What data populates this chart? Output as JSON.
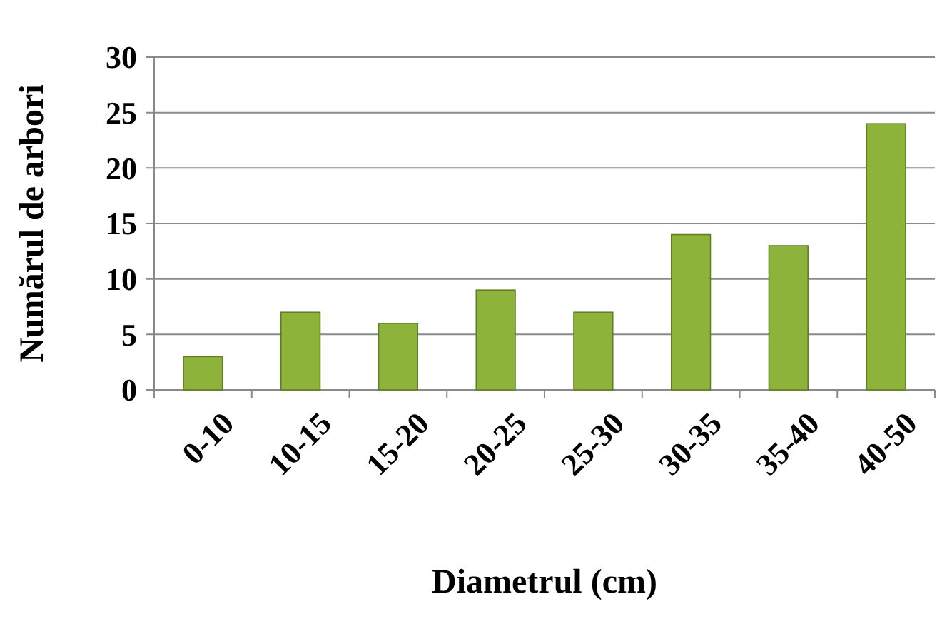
{
  "chart_data": {
    "type": "bar",
    "xlabel": "Diametrul (cm)",
    "ylabel": "Numărul de arbori",
    "categories": [
      "0-10",
      "10-15",
      "15-20",
      "20-25",
      "25-30",
      "30-35",
      "35-40",
      "40-50"
    ],
    "values": [
      3,
      7,
      6,
      9,
      7,
      14,
      13,
      24
    ],
    "color": "#8db33a",
    "ylim": [
      0,
      30
    ],
    "yticks": [
      0,
      5,
      10,
      15,
      20,
      25,
      30
    ],
    "grid": "y"
  }
}
